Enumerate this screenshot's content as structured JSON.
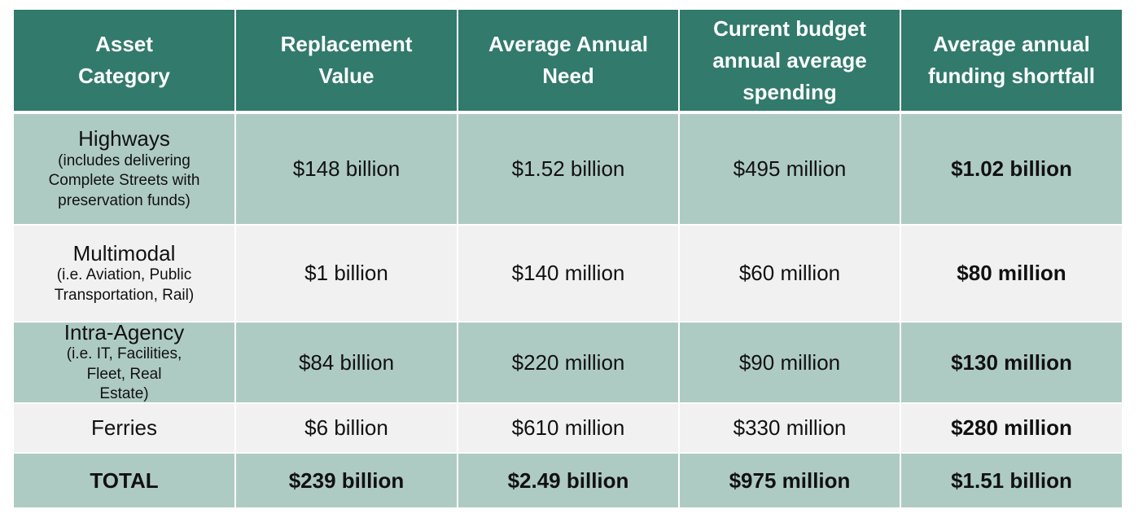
{
  "headers": [
    "Asset Category",
    "Replacement Value",
    "Average Annual Need",
    "Current budget annual average spending",
    "Average annual funding shortfall"
  ],
  "rows": [
    {
      "category": "Highways",
      "note": "(includes delivering Complete Streets with preservation funds)",
      "replacement": "$148 billion",
      "need": "$1.52 billion",
      "spending": "$495 million",
      "shortfall": "$1.02 billion"
    },
    {
      "category": "Multimodal",
      "note": "(i.e. Aviation, Public Transportation, Rail)",
      "replacement": "$1 billion",
      "need": "$140 million",
      "spending": "$60 million",
      "shortfall": "$80 million"
    },
    {
      "category": "Intra-Agency",
      "note": "(i.e. IT, Facilities, Fleet, Real Estate)",
      "replacement": "$84 billion",
      "need": "$220 million",
      "spending": "$90 million",
      "shortfall": "$130 million"
    },
    {
      "category": "Ferries",
      "replacement": "$6 billion",
      "need": "$610 million",
      "spending": "$330 million",
      "shortfall": "$280 million"
    }
  ],
  "total": {
    "category": "TOTAL",
    "replacement": "$239 billion",
    "need": "$2.49 billion",
    "spending": "$975 million",
    "shortfall": "$1.51 billion"
  },
  "colors": {
    "header": "#317a6c",
    "row_dark": "#aecbc3",
    "row_light": "#f1f1f1"
  }
}
